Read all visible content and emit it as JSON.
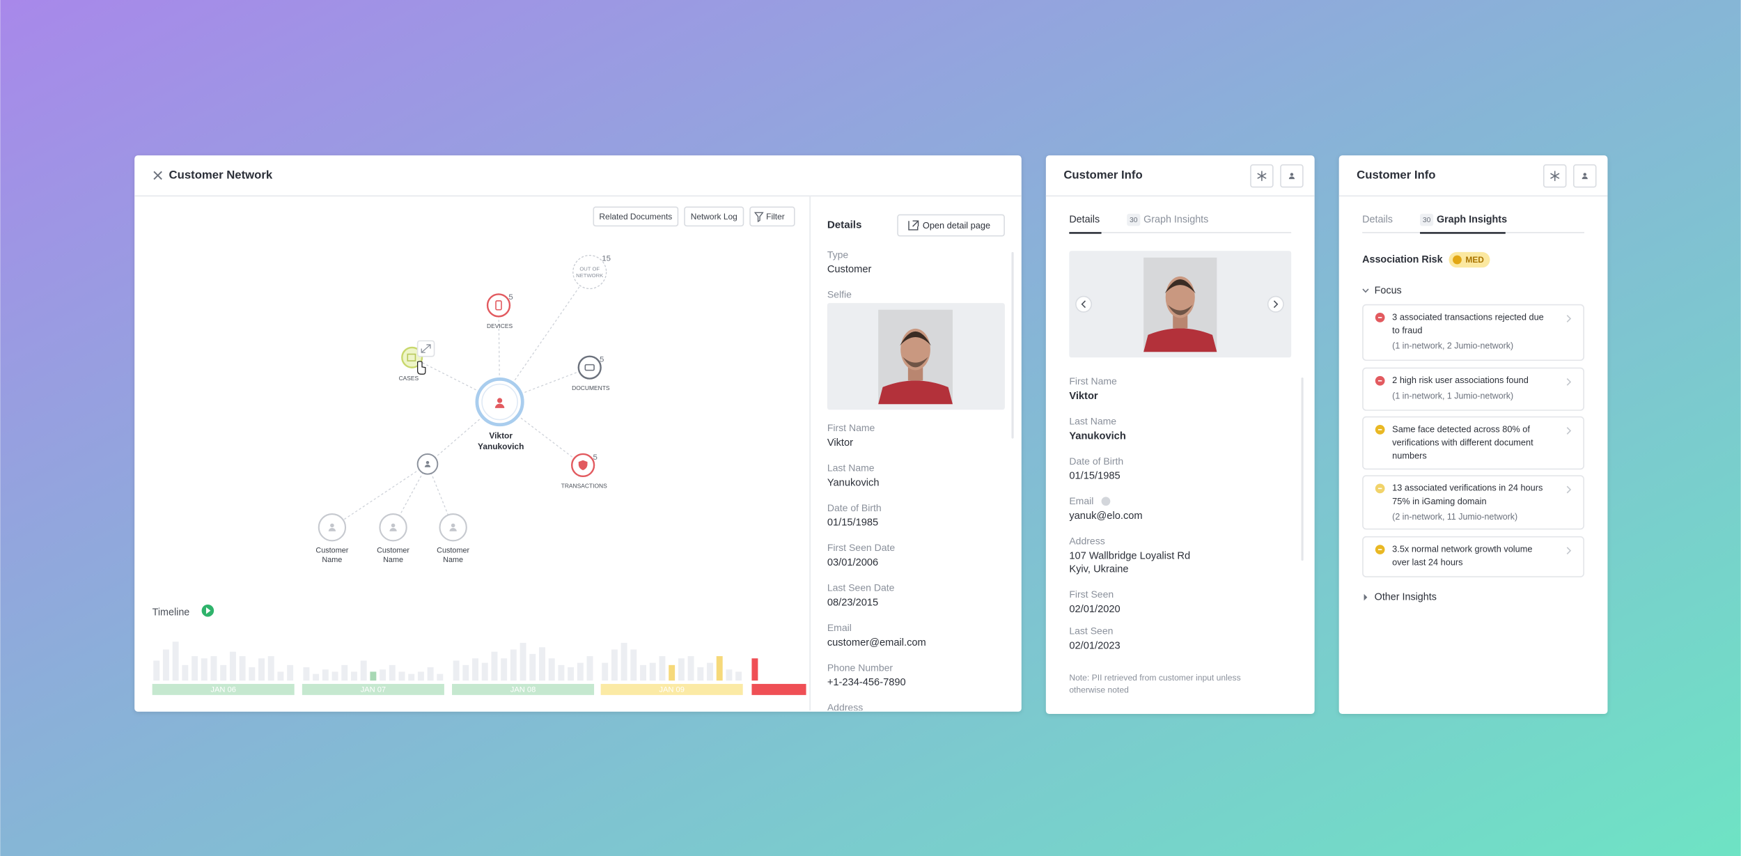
{
  "network_panel": {
    "title": "Customer Network",
    "toolbar": [
      "Related Documents",
      "Network Log",
      "Filter"
    ],
    "nodes": [
      {
        "label": [
          "Viktor",
          "Yanukovich"
        ]
      },
      {
        "label": [
          "DEVICES"
        ],
        "count": 5
      },
      {
        "label": [
          "OUT OF",
          "NETWORK"
        ],
        "count": 15
      },
      {
        "label": [
          "DOCUMENTS"
        ],
        "count": 5
      },
      {
        "label": [
          "CASES"
        ]
      },
      {
        "label": [
          "TRANSACTIONS"
        ],
        "count": 5
      },
      {
        "label": [
          "Customer",
          "Name"
        ]
      },
      {
        "label": [
          "Customer",
          "Name"
        ]
      },
      {
        "label": [
          "Customer",
          "Name"
        ]
      }
    ],
    "timeline": {
      "title": "Timeline",
      "segments": [
        "JAN 06",
        "JAN 07",
        "JAN 08",
        "JAN 09"
      ],
      "bars": {
        "values": [
          18,
          28,
          35,
          14,
          22,
          20,
          22,
          14,
          26,
          22,
          12,
          20,
          22,
          8,
          14,
          12,
          6,
          10,
          8,
          14,
          8,
          18,
          8,
          10,
          14,
          8,
          6,
          8,
          12,
          6,
          18,
          14,
          20,
          16,
          26,
          20,
          28,
          34,
          24,
          30,
          20,
          14,
          12,
          16,
          22,
          16,
          28,
          34,
          28,
          14,
          16,
          22,
          14,
          20,
          22,
          12,
          16,
          22,
          10,
          8,
          20
        ],
        "colors": [
          "#eceef2",
          "#eceef2",
          "#eceef2",
          "#eceef2",
          "#eceef2",
          "#eceef2",
          "#eceef2",
          "#eceef2",
          "#eceef2",
          "#eceef2",
          "#eceef2",
          "#eceef2",
          "#eceef2",
          "#eceef2",
          "#eceef2",
          "#eceef2",
          "#eceef2",
          "#eceef2",
          "#eceef2",
          "#eceef2",
          "#eceef2",
          "#eceef2",
          "#a8d8b4",
          "#eceef2",
          "#eceef2",
          "#eceef2",
          "#eceef2",
          "#eceef2",
          "#eceef2",
          "#eceef2",
          "#eceef2",
          "#eceef2",
          "#eceef2",
          "#eceef2",
          "#eceef2",
          "#eceef2",
          "#eceef2",
          "#eceef2",
          "#eceef2",
          "#eceef2",
          "#eceef2",
          "#eceef2",
          "#eceef2",
          "#eceef2",
          "#eceef2",
          "#eceef2",
          "#eceef2",
          "#eceef2",
          "#eceef2",
          "#eceef2",
          "#eceef2",
          "#eceef2",
          "#f6d97a",
          "#eceef2",
          "#eceef2",
          "#eceef2",
          "#eceef2",
          "#f6d97a",
          "#eceef2",
          "#eceef2",
          "#ef4f55"
        ]
      }
    },
    "details": {
      "title": "Details",
      "action": "Open detail page",
      "fields": [
        {
          "label": "Type",
          "value": "Customer"
        },
        {
          "label": "Selfie"
        },
        {
          "label": "First Name",
          "value": "Viktor"
        },
        {
          "label": "Last Name",
          "value": "Yanukovich"
        },
        {
          "label": "Date of Birth",
          "value": "01/15/1985"
        },
        {
          "label": "First Seen Date",
          "value": "03/01/2006"
        },
        {
          "label": "Last Seen Date",
          "value": "08/23/2015"
        },
        {
          "label": "Email",
          "value": "customer@email.com"
        },
        {
          "label": "Phone Number",
          "value": "+1-234-456-7890"
        },
        {
          "label": "Address"
        }
      ]
    }
  },
  "info_panel_details": {
    "title": "Customer Info",
    "tabs": [
      {
        "label": "Details"
      },
      {
        "label": "Graph Insights",
        "badge": 30
      }
    ],
    "fields": [
      {
        "label": "First Name",
        "value": "Viktor"
      },
      {
        "label": "Last Name",
        "value": "Yanukovich"
      },
      {
        "label": "Date of Birth",
        "value": "01/15/1985"
      },
      {
        "label": "Email",
        "value": "yanuk@elo.com"
      },
      {
        "label": "Address",
        "value": [
          "107 Wallbridge Loyalist Rd",
          "Kyiv, Ukraine"
        ]
      },
      {
        "label": "First Seen",
        "value": "02/01/2020"
      },
      {
        "label": "Last Seen",
        "value": "02/01/2023"
      }
    ],
    "note": [
      "Note: PII retrieved from customer input unless",
      "otherwise noted"
    ]
  },
  "info_panel_insights": {
    "title": "Customer Info",
    "tabs": [
      {
        "label": "Details"
      },
      {
        "label": "Graph Insights",
        "badge": 30
      }
    ],
    "risk_label": "Association Risk",
    "risk_level": "MED",
    "focus_title": "Focus",
    "insights": [
      {
        "icon_color": "#e25a5f",
        "lines": [
          "3 associated transactions rejected due",
          "to fraud"
        ],
        "note": "(1 in-network, 2 Jumio-network)"
      },
      {
        "icon_color": "#e25a5f",
        "lines": [
          "2 high risk user associations found"
        ],
        "note": "(1 in-network, 1 Jumio-network)"
      },
      {
        "icon_color": "#e9b824",
        "lines": [
          "Same face detected across 80% of",
          "verifications with different document",
          "numbers"
        ]
      },
      {
        "icon_color": "#f1d36a",
        "lines": [
          "13 associated verifications in 24 hours",
          "75% in iGaming domain"
        ],
        "note": "(2 in-network, 11 Jumio-network)"
      },
      {
        "icon_color": "#e9b824",
        "lines": [
          "3.5x normal network growth volume",
          "over last 24 hours"
        ]
      }
    ],
    "other_title": "Other Insights"
  }
}
